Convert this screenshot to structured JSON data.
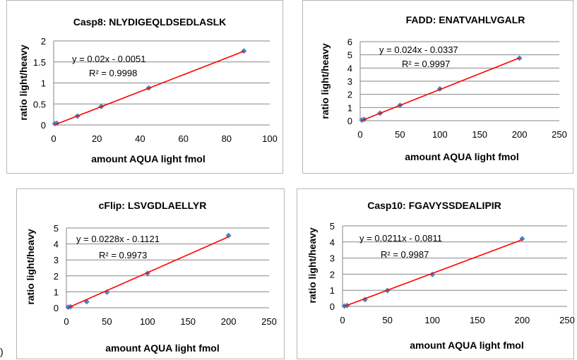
{
  "chart_data": [
    {
      "type": "scatter",
      "title": "Casp8: NLYDIGEQLDSEDLASLK",
      "xlabel": "amount AQUA light fmol",
      "ylabel": "ratio light/heavy",
      "xlim": [
        0,
        100
      ],
      "ylim": [
        0,
        2
      ],
      "xticks": [
        "0",
        "20",
        "40",
        "60",
        "80",
        "100"
      ],
      "yticks": [
        "0",
        "0.5",
        "1",
        "1.5",
        "2"
      ],
      "equation": "y = 0.02x - 0.0051",
      "r2": "R² = 0.9998",
      "points": {
        "x": [
          0.5,
          1.5,
          11,
          22,
          44,
          88
        ],
        "y": [
          0.03,
          0.04,
          0.21,
          0.44,
          0.88,
          1.76
        ]
      },
      "trendline": {
        "slope": 0.02,
        "intercept": -0.0051
      },
      "grid": "horizontal",
      "marker_color": "#4f81bd",
      "line_color": "#ff0000"
    },
    {
      "type": "scatter",
      "title": "FADD:  ENATVAHLVGALR",
      "xlabel": "amount AQUA light fmol",
      "ylabel": "ratio light/heavy",
      "xlim": [
        0,
        250
      ],
      "ylim": [
        0,
        6
      ],
      "xticks": [
        "0",
        "50",
        "100",
        "150",
        "200",
        "250"
      ],
      "yticks": [
        "0",
        "1",
        "2",
        "3",
        "4",
        "5",
        "6"
      ],
      "equation": "y = 0.024x - 0.0337",
      "r2": "R² = 0.9997",
      "points": {
        "x": [
          2,
          5,
          25,
          50,
          100,
          200
        ],
        "y": [
          0.05,
          0.1,
          0.57,
          1.17,
          2.42,
          4.75
        ]
      },
      "trendline": {
        "slope": 0.024,
        "intercept": -0.0337
      },
      "grid": "horizontal",
      "marker_color": "#4f81bd",
      "line_color": "#ff0000"
    },
    {
      "type": "scatter",
      "title": "cFlip: LSVGDLAELLYR",
      "xlabel": "amount AQUA light fmol",
      "ylabel": "ratio light/heavy",
      "xlim": [
        0,
        250
      ],
      "ylim": [
        0,
        5
      ],
      "xticks": [
        "0",
        "50",
        "100",
        "150",
        "200",
        "250"
      ],
      "yticks": [
        "0",
        "1",
        "2",
        "3",
        "4",
        "5"
      ],
      "equation": "y = 0.0228x - 0.1121",
      "r2": "R² = 0.9973",
      "points": {
        "x": [
          2,
          5,
          25,
          50,
          100,
          200
        ],
        "y": [
          0.04,
          0.06,
          0.38,
          0.98,
          2.15,
          4.53
        ]
      },
      "trendline": {
        "slope": 0.0228,
        "intercept": -0.1121
      },
      "grid": "horizontal",
      "marker_color": "#4f81bd",
      "line_color": "#ff0000"
    },
    {
      "type": "scatter",
      "title": "Casp10: FGAVYSSDEALIPIR",
      "xlabel": "amount AQUA light fmol",
      "ylabel": "ratio light/heavy",
      "xlim": [
        0,
        250
      ],
      "ylim": [
        0,
        5
      ],
      "xticks": [
        "0",
        "50",
        "100",
        "150",
        "200",
        "250"
      ],
      "yticks": [
        "0",
        "1",
        "2",
        "3",
        "4",
        "5"
      ],
      "equation": "y = 0.0211x - 0.0811",
      "r2": "R² = 0.9987",
      "points": {
        "x": [
          2,
          5,
          25,
          50,
          100,
          200
        ],
        "y": [
          0.02,
          0.05,
          0.42,
          0.98,
          1.98,
          4.2
        ]
      },
      "trendline": {
        "slope": 0.0211,
        "intercept": -0.0811
      },
      "grid": "horizontal",
      "marker_color": "#4f81bd",
      "line_color": "#ff0000"
    }
  ],
  "stray_text": ")"
}
